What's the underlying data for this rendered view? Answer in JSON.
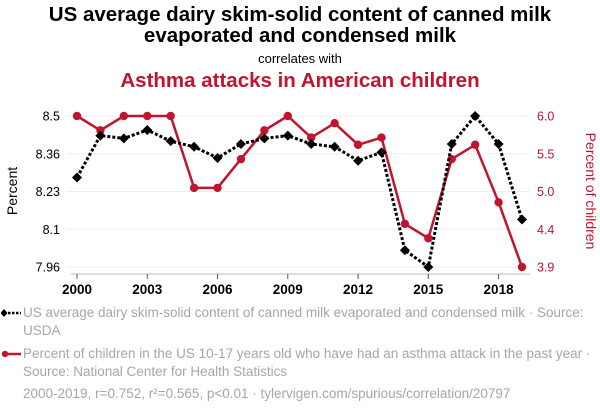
{
  "chart_data": {
    "type": "line",
    "title": "US average dairy skim-solid content of canned milk evaporated and condensed milk",
    "subtitle": "correlates with",
    "title2": "Asthma attacks in American children",
    "x": [
      2000,
      2001,
      2002,
      2003,
      2004,
      2005,
      2006,
      2007,
      2008,
      2009,
      2010,
      2011,
      2012,
      2013,
      2014,
      2015,
      2016,
      2017,
      2018,
      2019
    ],
    "x_ticks": [
      "2000",
      "2003",
      "2006",
      "2009",
      "2012",
      "2015",
      "2018"
    ],
    "x_tick_values": [
      2000,
      2003,
      2006,
      2009,
      2012,
      2015,
      2018
    ],
    "y_left": {
      "label": "Percent",
      "ticks": [
        "8.5",
        "8.36",
        "8.23",
        "8.1",
        "7.96"
      ],
      "range": [
        7.96,
        8.5
      ]
    },
    "y_right": {
      "label": "Percent of children",
      "ticks": [
        "6.0",
        "5.5",
        "5.0",
        "4.4",
        "3.9"
      ],
      "range": [
        3.9,
        6.0
      ]
    },
    "grid": true,
    "series": [
      {
        "name": "US average dairy skim-solid content of canned milk evaporated and condensed milk",
        "axis": "left",
        "color": "#000000",
        "style": "dotted",
        "marker": "diamond",
        "values": [
          8.28,
          8.43,
          8.42,
          8.45,
          8.41,
          8.39,
          8.35,
          8.4,
          8.42,
          8.43,
          8.4,
          8.39,
          8.34,
          8.37,
          8.02,
          7.96,
          8.4,
          8.5,
          8.4,
          8.13
        ]
      },
      {
        "name": "Percent of children in the US 10-17 years old who have had an asthma attack in the past year",
        "axis": "right",
        "color": "#c0142f",
        "style": "solid",
        "marker": "circle",
        "values": [
          6.0,
          5.8,
          6.0,
          6.0,
          6.0,
          5.0,
          5.0,
          5.4,
          5.8,
          6.0,
          5.7,
          5.9,
          5.6,
          5.7,
          4.5,
          4.3,
          5.4,
          5.6,
          4.8,
          3.9
        ]
      }
    ],
    "legend": [
      {
        "text": "US average dairy skim-solid content of canned milk evaporated and condensed milk · Source: USDA"
      },
      {
        "text": "Percent of children in the US 10-17 years old who have had an asthma attack in the past year · Source: National Center for Health Statistics"
      }
    ],
    "legend_position": "bottom",
    "footer": "2000-2019, r=0.752, r²=0.565, p<0.01 · tylervigen.com/spurious/correlation/20797"
  }
}
